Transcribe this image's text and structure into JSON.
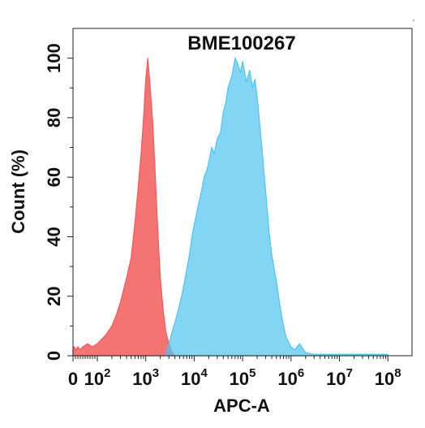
{
  "chart_data": {
    "type": "area",
    "title": "BME100267",
    "xlabel": "APC-A",
    "ylabel": "Count  (%)",
    "xscale": "biexponential",
    "ylim": [
      0,
      110
    ],
    "xtick_labels": [
      {
        "value": 0,
        "base": "0",
        "exp": ""
      },
      {
        "value": 100,
        "base": "10",
        "exp": "2"
      },
      {
        "value": 1000,
        "base": "10",
        "exp": "3"
      },
      {
        "value": 10000,
        "base": "10",
        "exp": "4"
      },
      {
        "value": 100000,
        "base": "10",
        "exp": "5"
      },
      {
        "value": 1000000,
        "base": "10",
        "exp": "6"
      },
      {
        "value": 10000000,
        "base": "10",
        "exp": "7"
      },
      {
        "value": 100000000,
        "base": "10",
        "exp": "8"
      }
    ],
    "yticks": [
      0,
      20,
      40,
      60,
      80,
      100
    ],
    "grid": false,
    "legend": "none",
    "series": [
      {
        "color": "#f25a5a",
        "x": [
          0,
          5,
          10,
          20,
          30,
          40,
          60,
          80,
          100,
          150,
          200,
          250,
          300,
          400,
          500,
          600,
          700,
          800,
          900,
          1000,
          1100,
          1200,
          1400,
          1600,
          1800,
          2000,
          2300,
          2600,
          3000,
          3500,
          4000
        ],
        "y": [
          2,
          3,
          2,
          3,
          2,
          3,
          4,
          3,
          4,
          7,
          10,
          14,
          18,
          26,
          33,
          45,
          57,
          68,
          80,
          93,
          100,
          93,
          78,
          58,
          40,
          26,
          15,
          8,
          4,
          1,
          0
        ]
      },
      {
        "color": "#4fc3ef",
        "x": [
          2500,
          3000,
          3500,
          4000,
          5000,
          6000,
          7000,
          8000,
          9000,
          10000,
          12000,
          14000,
          16000,
          18000,
          20000,
          23000,
          26000,
          30000,
          35000,
          40000,
          45000,
          50000,
          60000,
          70000,
          80000,
          90000,
          100000,
          120000,
          140000,
          160000,
          180000,
          200000,
          250000,
          300000,
          350000,
          400000,
          500000,
          600000,
          700000,
          800000,
          1000000,
          1200000,
          1500000,
          2000000,
          3000000,
          10000000,
          100000000
        ],
        "y": [
          0,
          4,
          8,
          11,
          17,
          23,
          29,
          34,
          40,
          44,
          50,
          55,
          60,
          62,
          65,
          70,
          68,
          73,
          75,
          82,
          85,
          90,
          94,
          100,
          98,
          95,
          99,
          92,
          96,
          90,
          93,
          87,
          70,
          55,
          42,
          34,
          25,
          16,
          10,
          6,
          3,
          2,
          4,
          1,
          0.5,
          0.5,
          0.5
        ]
      }
    ]
  }
}
